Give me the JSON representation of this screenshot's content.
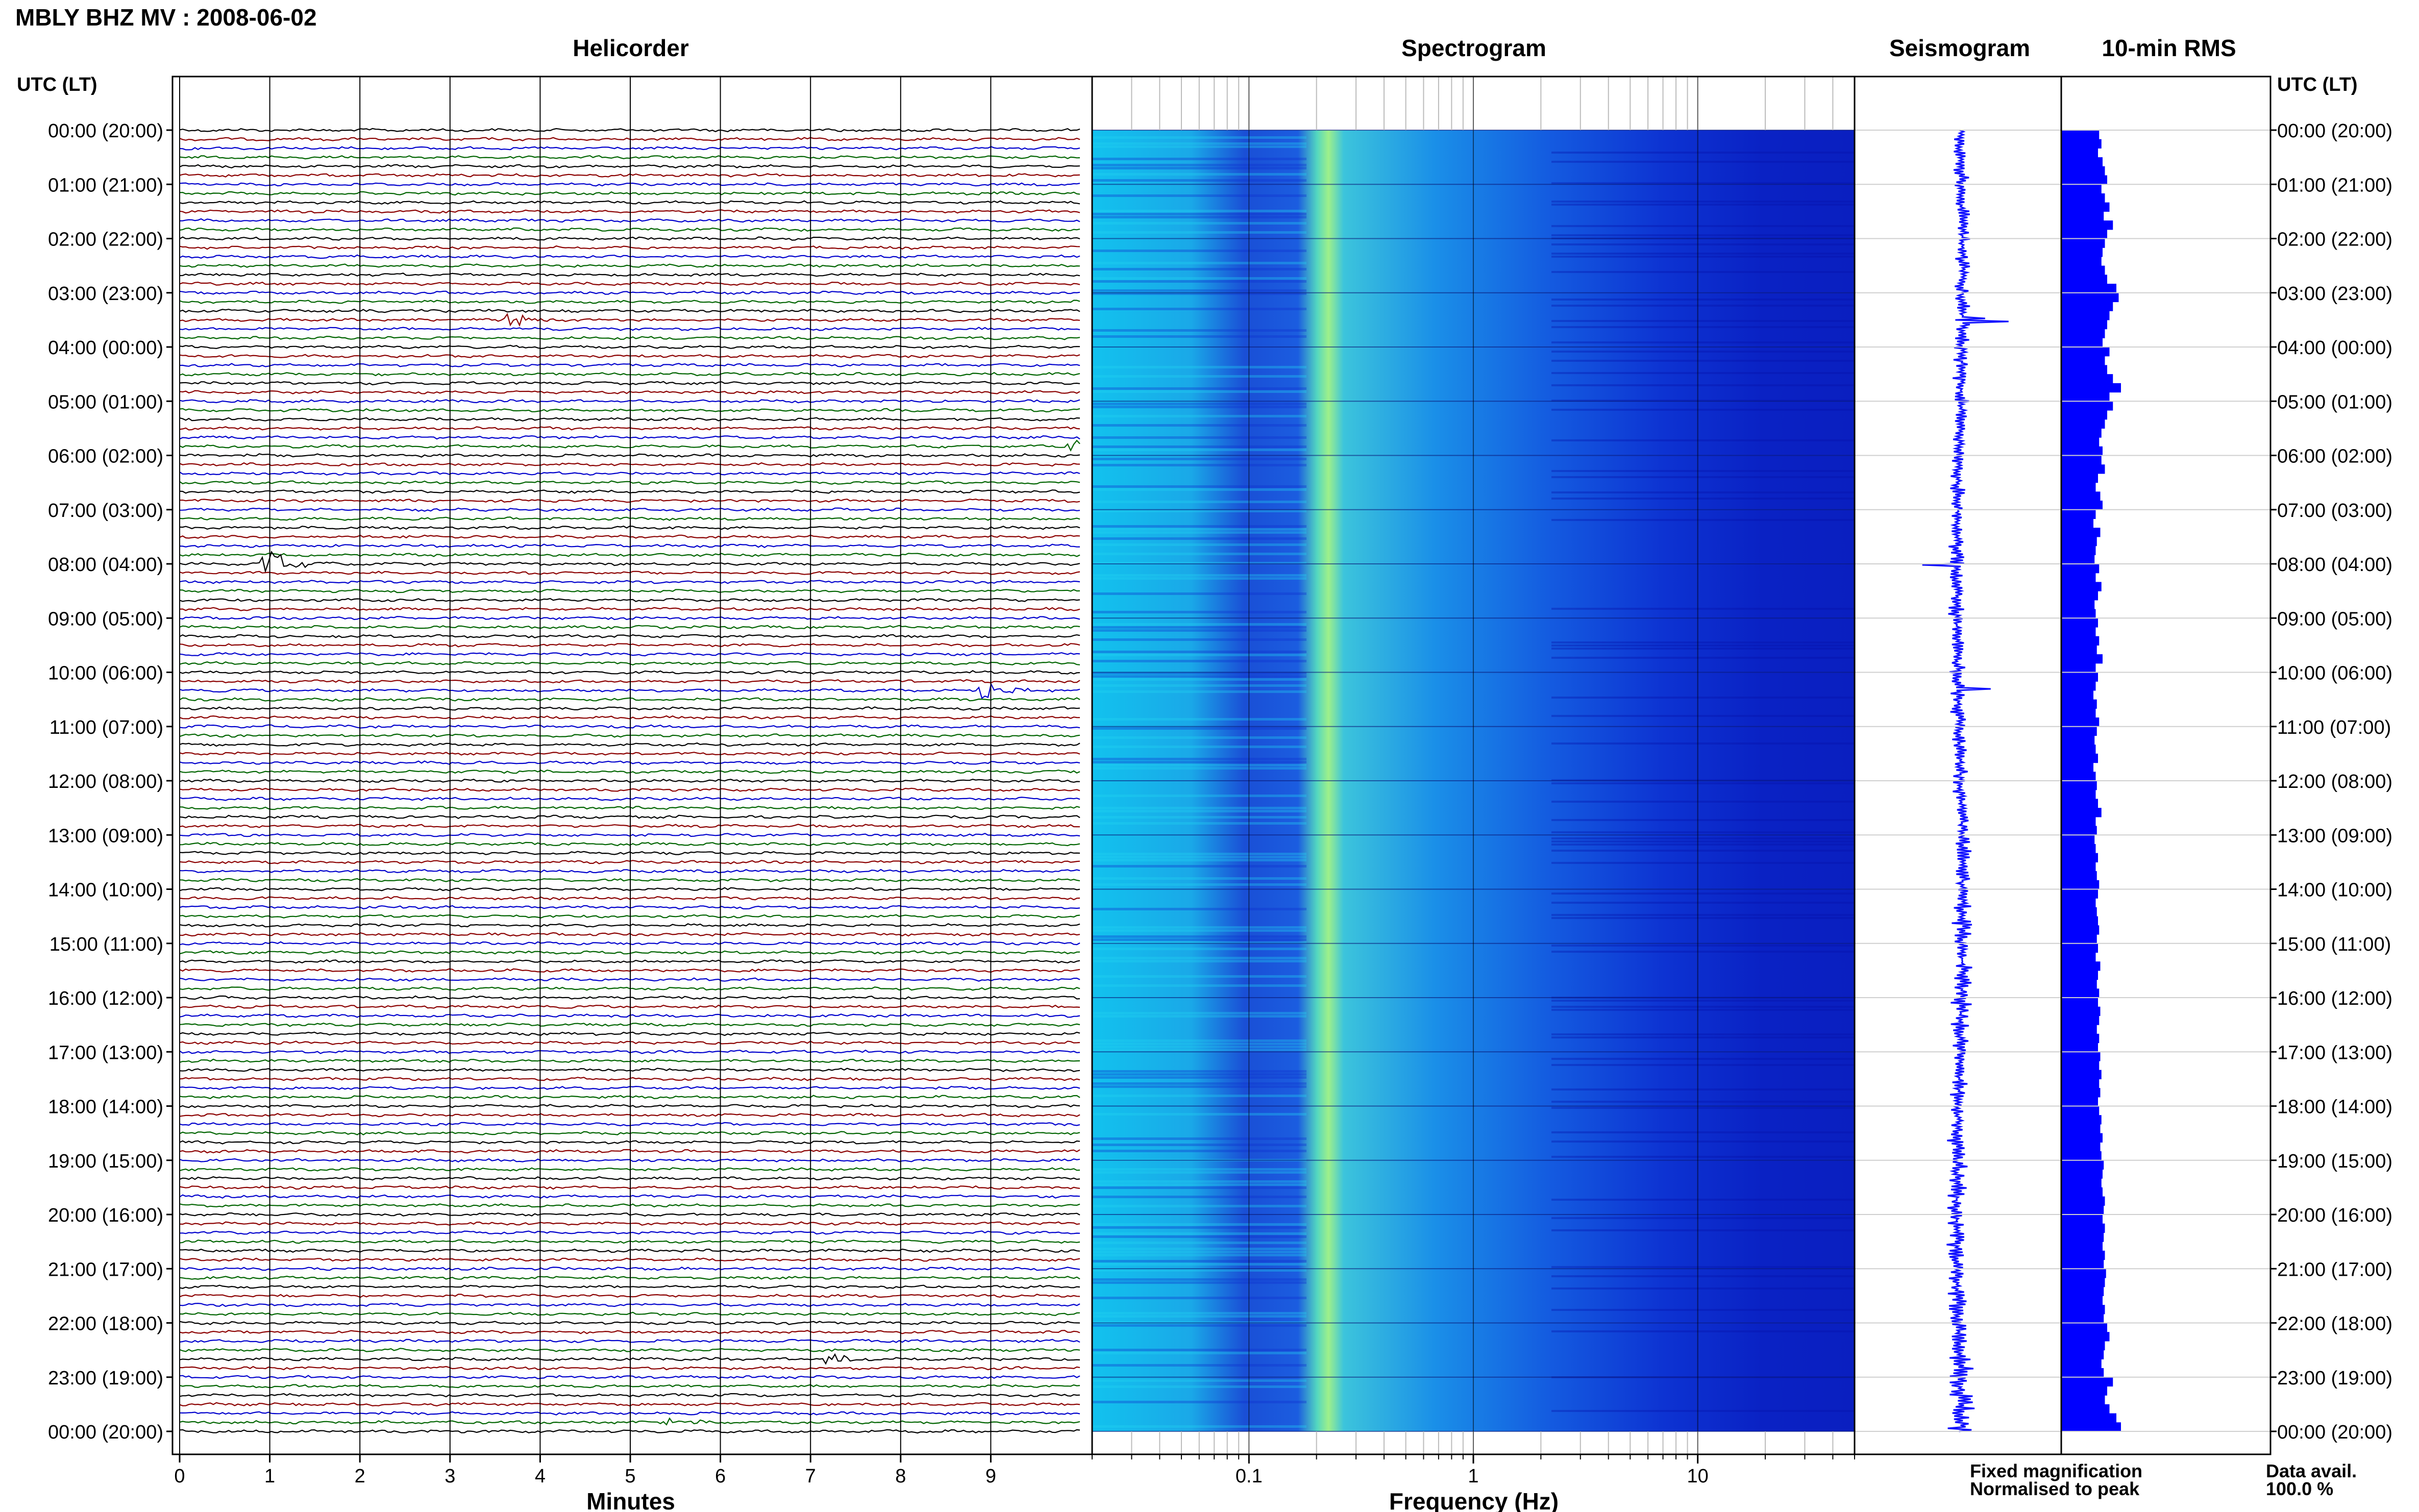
{
  "header": {
    "title": "MBLY BHZ MV : 2008-06-02"
  },
  "panels": {
    "helicorder": "Helicorder",
    "spectrogram": "Spectrogram",
    "seismogram": "Seismogram",
    "rms": "10-min RMS"
  },
  "axis": {
    "time_heading": "UTC (LT)",
    "minutes_label": "Minutes",
    "frequency_label": "Frequency (Hz)"
  },
  "legend": {
    "fixed": "Fixed magnification",
    "normalised": "Normalised to peak",
    "fixed_color": "#0000ff",
    "normalised_color": "#ff0000"
  },
  "availability": {
    "label": "Data avail.",
    "value": "100.0 %"
  },
  "chart_data": {
    "type": "line",
    "title": "MBLY BHZ MV : 2008-06-02",
    "time_ticks": [
      "00:00 (20:00)",
      "01:00 (21:00)",
      "02:00 (22:00)",
      "03:00 (23:00)",
      "04:00 (00:00)",
      "05:00 (01:00)",
      "06:00 (02:00)",
      "07:00 (03:00)",
      "08:00 (04:00)",
      "09:00 (05:00)",
      "10:00 (06:00)",
      "11:00 (07:00)",
      "12:00 (08:00)",
      "13:00 (09:00)",
      "14:00 (10:00)",
      "15:00 (11:00)",
      "16:00 (12:00)",
      "17:00 (13:00)",
      "18:00 (14:00)",
      "19:00 (15:00)",
      "20:00 (16:00)",
      "21:00 (17:00)",
      "22:00 (18:00)",
      "23:00 (19:00)",
      "00:00 (20:00)"
    ],
    "minute_ticks": [
      "0",
      "1",
      "2",
      "3",
      "4",
      "5",
      "6",
      "7",
      "8",
      "9"
    ],
    "frequency_ticks": [
      "0.1",
      "1",
      "10"
    ],
    "frequency_range_hz": [
      0.02,
      50
    ],
    "helicorder": {
      "minutes_per_line": 10,
      "lines_per_hour": 6,
      "line_colors": [
        "#000000",
        "#8b0000",
        "#0000cd",
        "#006400"
      ],
      "events": [
        {
          "hour": 3.5,
          "minute": 3.65,
          "amplitude": 1.4
        },
        {
          "hour": 5.83,
          "minute": 9.9,
          "amplitude": 1.0
        },
        {
          "hour": 8.0,
          "minute": 0.95,
          "amplitude": 2.2
        },
        {
          "hour": 10.33,
          "minute": 8.9,
          "amplitude": 1.4
        },
        {
          "hour": 22.67,
          "minute": 7.2,
          "amplitude": 0.9
        },
        {
          "hour": 23.83,
          "minute": 5.4,
          "amplitude": 0.8
        }
      ]
    },
    "seismogram": {
      "events_hour": [
        3.5,
        8.0,
        10.33
      ]
    },
    "rms_10min": {
      "values": [
        0.33,
        0.35,
        0.32,
        0.36,
        0.38,
        0.4,
        0.35,
        0.38,
        0.42,
        0.37,
        0.45,
        0.4,
        0.38,
        0.36,
        0.35,
        0.38,
        0.4,
        0.48,
        0.5,
        0.45,
        0.42,
        0.4,
        0.38,
        0.36,
        0.42,
        0.38,
        0.4,
        0.45,
        0.52,
        0.42,
        0.45,
        0.4,
        0.38,
        0.35,
        0.33,
        0.36,
        0.35,
        0.38,
        0.32,
        0.3,
        0.34,
        0.36,
        0.3,
        0.28,
        0.34,
        0.31,
        0.3,
        0.29,
        0.33,
        0.3,
        0.35,
        0.32,
        0.29,
        0.3,
        0.32,
        0.3,
        0.33,
        0.31,
        0.36,
        0.3,
        0.32,
        0.3,
        0.28,
        0.31,
        0.3,
        0.33,
        0.31,
        0.29,
        0.3,
        0.32,
        0.28,
        0.3,
        0.31,
        0.3,
        0.32,
        0.35,
        0.3,
        0.31,
        0.29,
        0.3,
        0.32,
        0.3,
        0.31,
        0.33,
        0.32,
        0.3,
        0.31,
        0.32,
        0.33,
        0.31,
        0.32,
        0.3,
        0.34,
        0.32,
        0.31,
        0.33,
        0.32,
        0.34,
        0.33,
        0.31,
        0.33,
        0.32,
        0.34,
        0.33,
        0.35,
        0.33,
        0.34,
        0.32,
        0.33,
        0.35,
        0.34,
        0.36,
        0.34,
        0.35,
        0.37,
        0.36,
        0.35,
        0.36,
        0.38,
        0.37,
        0.36,
        0.38,
        0.37,
        0.36,
        0.38,
        0.37,
        0.39,
        0.38,
        0.37,
        0.36,
        0.38,
        0.37,
        0.4,
        0.42,
        0.38,
        0.37,
        0.35,
        0.37,
        0.45,
        0.4,
        0.38,
        0.42,
        0.48,
        0.52
      ],
      "max": 0.6
    }
  }
}
